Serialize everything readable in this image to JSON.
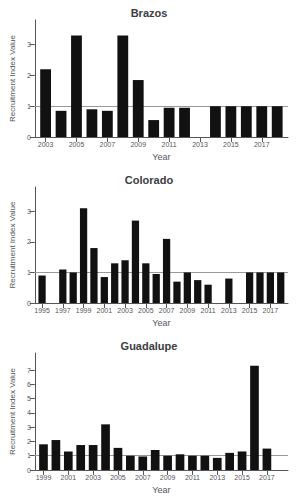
{
  "chart_data": [
    {
      "type": "bar",
      "title": "Brazos",
      "x": [
        2003,
        2004,
        2005,
        2006,
        2007,
        2008,
        2009,
        2010,
        2011,
        2012,
        2013,
        2014,
        2015,
        2016,
        2017,
        2018
      ],
      "values": [
        2.2,
        0.85,
        3.3,
        0.9,
        0.85,
        3.3,
        1.85,
        0.55,
        0.95,
        0.95,
        0.0,
        1.0,
        1.0,
        1.0,
        1.0,
        1.0
      ],
      "xlabel": "Year",
      "ylabel": "Recruitment Index Value",
      "xlim": [
        2002.3,
        2018.7
      ],
      "xticks": [
        2003,
        2005,
        2007,
        2009,
        2011,
        2013,
        2015,
        2017
      ],
      "ylim": [
        0,
        3.8
      ],
      "yticks": [
        0,
        1,
        2,
        3
      ],
      "color": "#111111",
      "grid": false,
      "hline": {
        "value": 1.0,
        "color": "#999999"
      }
    },
    {
      "type": "bar",
      "title": "Colorado",
      "x": [
        1995,
        1996,
        1997,
        1998,
        1999,
        2000,
        2001,
        2002,
        2003,
        2004,
        2005,
        2006,
        2007,
        2008,
        2009,
        2010,
        2011,
        2012,
        2013,
        2014,
        2015,
        2016,
        2017,
        2018
      ],
      "values": [
        0.9,
        0.0,
        1.1,
        1.0,
        3.1,
        1.8,
        0.85,
        1.3,
        1.4,
        2.7,
        1.3,
        0.95,
        2.1,
        0.7,
        1.0,
        0.75,
        0.6,
        0.0,
        0.8,
        0.0,
        1.0,
        1.0,
        1.0,
        1.0
      ],
      "xlabel": "Year",
      "ylabel": "Recruitment Index Value",
      "xlim": [
        1994.3,
        2018.7
      ],
      "xticks": [
        1995,
        1997,
        1999,
        2001,
        2003,
        2005,
        2007,
        2009,
        2011,
        2013,
        2015,
        2017
      ],
      "ylim": [
        0,
        3.8
      ],
      "yticks": [
        0,
        1,
        2,
        3
      ],
      "color": "#111111",
      "grid": false,
      "hline": {
        "value": 1.0,
        "color": "#999999"
      }
    },
    {
      "type": "bar",
      "title": "Guadalupe",
      "x": [
        1999,
        2000,
        2001,
        2002,
        2003,
        2004,
        2005,
        2006,
        2007,
        2008,
        2009,
        2010,
        2011,
        2012,
        2013,
        2014,
        2015,
        2016,
        2017,
        2018
      ],
      "values": [
        1.8,
        2.1,
        1.3,
        1.75,
        1.75,
        3.2,
        1.55,
        1.0,
        0.95,
        1.4,
        1.0,
        1.1,
        1.0,
        1.0,
        0.85,
        1.2,
        1.3,
        7.3,
        1.5,
        0.0
      ],
      "xlabel": "Year",
      "ylabel": "Recruitment Index Value",
      "xlim": [
        1998.3,
        2018.7
      ],
      "xticks": [
        1999,
        2001,
        2003,
        2005,
        2007,
        2009,
        2011,
        2013,
        2015,
        2017
      ],
      "ylim": [
        0,
        8.2
      ],
      "yticks": [
        0,
        1,
        2,
        3,
        4,
        5,
        6,
        7
      ],
      "color": "#111111",
      "grid": false,
      "hline": {
        "value": 1.0,
        "color": "#999999"
      }
    }
  ]
}
